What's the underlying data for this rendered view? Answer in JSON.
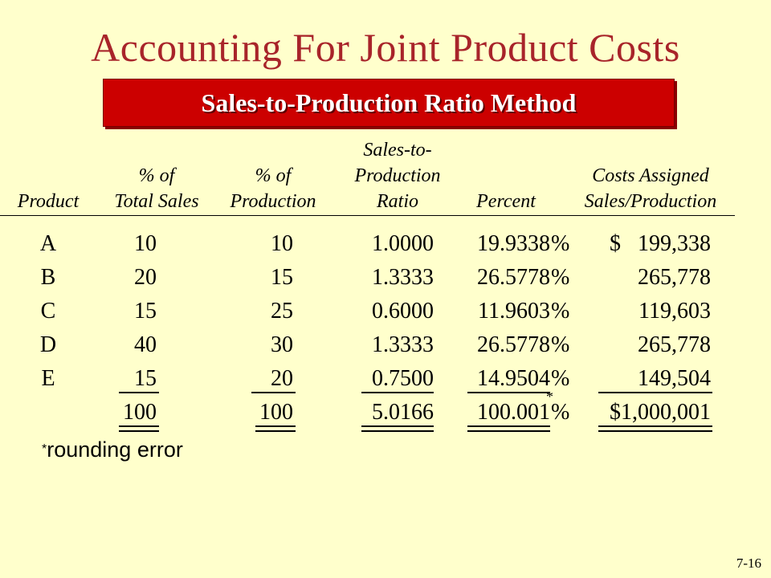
{
  "title": "Accounting For Joint Product Costs",
  "banner": "Sales-to-Production Ratio Method",
  "headers": {
    "product": "Product",
    "pct_sales_1": "% of",
    "pct_sales_2": "Total Sales",
    "pct_prod_1": "% of",
    "pct_prod_2": "Production",
    "ratio_1": "Sales-to-",
    "ratio_2": "Production",
    "ratio_3": "Ratio",
    "percent": "Percent",
    "costs_1": "Costs Assigned",
    "costs_2": "Sales/Production"
  },
  "rows": [
    {
      "product": "A",
      "sales": "10",
      "prod": "10",
      "ratio": "1.0000",
      "percent": "19.9338",
      "pct_sign": "%",
      "cost": "$   199,338"
    },
    {
      "product": "B",
      "sales": "20",
      "prod": "15",
      "ratio": "1.3333",
      "percent": "26.5778",
      "pct_sign": "%",
      "cost": "265,778"
    },
    {
      "product": "C",
      "sales": "15",
      "prod": "25",
      "ratio": "0.6000",
      "percent": "11.9603",
      "pct_sign": "%",
      "cost": "119,603"
    },
    {
      "product": "D",
      "sales": "40",
      "prod": "30",
      "ratio": "1.3333",
      "percent": "26.5778",
      "pct_sign": "%",
      "cost": "265,778"
    },
    {
      "product": "E",
      "sales": "15",
      "prod": "20",
      "ratio": "0.7500",
      "percent": "14.9504",
      "pct_sign": "%",
      "cost": "149,504"
    }
  ],
  "totals": {
    "sales": "100",
    "prod": "100",
    "ratio": "5.0166",
    "percent": "100.001",
    "pct_sign": "%",
    "cost": "$1,000,001"
  },
  "asterisk": "*",
  "footnote": {
    "star": "*",
    "text": "rounding error"
  },
  "slide_number": "7-16"
}
